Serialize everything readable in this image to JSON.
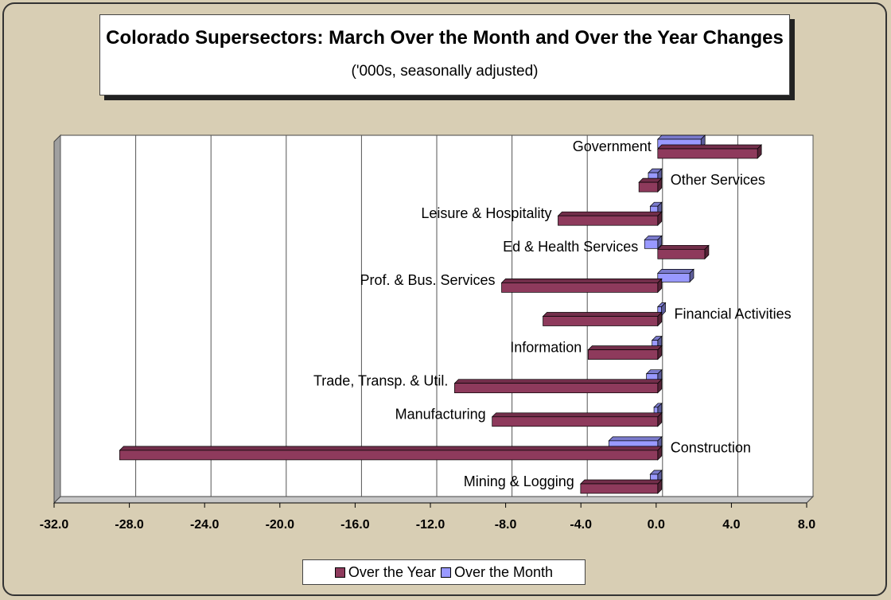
{
  "chart_data": {
    "type": "hbar",
    "title": "Colorado Supersectors: March Over the Month and Over the Year Changes",
    "subtitle": "('000s, seasonally adjusted)",
    "categories": [
      "Mining & Logging",
      "Construction",
      "Manufacturing",
      "Trade, Transp. & Util.",
      "Information",
      "Financial Activities",
      "Prof. & Bus. Services",
      "Ed & Health Services",
      "Leisure & Hospitality",
      "Other Services",
      "Government"
    ],
    "series": [
      {
        "name": "Over the Year",
        "color": "#8e3a5c",
        "values": [
          -4.1,
          -28.6,
          -8.8,
          -10.8,
          -3.7,
          -6.1,
          -8.3,
          2.5,
          -5.3,
          -1.0,
          5.3
        ]
      },
      {
        "name": "Over the Month",
        "color": "#9999ff",
        "values": [
          -0.4,
          -2.6,
          -0.2,
          -0.6,
          -0.3,
          0.2,
          1.7,
          -0.7,
          -0.4,
          -0.5,
          2.3
        ]
      }
    ],
    "xlim": [
      -32,
      8
    ],
    "xticks": [
      {
        "value": -32,
        "label": "-32.0"
      },
      {
        "value": -28,
        "label": "-28.0"
      },
      {
        "value": -24,
        "label": "-24.0"
      },
      {
        "value": -20,
        "label": "-20.0"
      },
      {
        "value": -16,
        "label": "-16.0"
      },
      {
        "value": -12,
        "label": "-12.0"
      },
      {
        "value": -8,
        "label": "-8.0"
      },
      {
        "value": -4,
        "label": "-4.0"
      },
      {
        "value": 0,
        "label": "0.0"
      },
      {
        "value": 4,
        "label": "4.0"
      },
      {
        "value": 8,
        "label": "8.0"
      }
    ],
    "grid": true
  }
}
